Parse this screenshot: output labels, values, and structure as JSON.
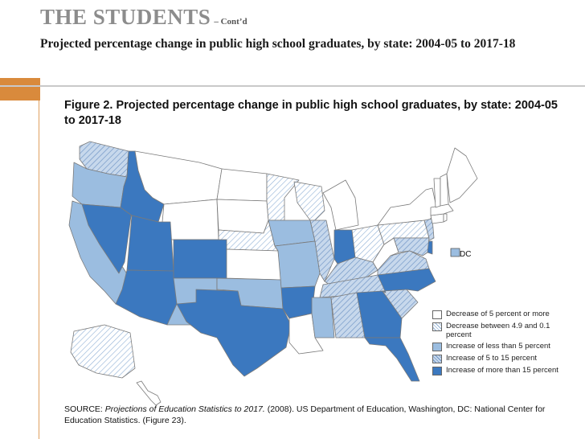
{
  "slide": {
    "title": "THE STUDENTS",
    "title_suffix": "– Cont’d",
    "subtitle": "Projected percentage change in public high school graduates, by state: 2004-05 to 2017-18"
  },
  "figure": {
    "title": "Figure 2. Projected percentage change in public high school graduates, by state: 2004-05 to 2017-18",
    "dc_label": "DC",
    "source_prefix": "SOURCE: ",
    "source_italic": "Projections of Education Statistics to 2017.",
    "source_rest": " (2008). US Department of Education, Washington, DC: National Center for Education Statistics. (Figure 23)."
  },
  "colors": {
    "decrease_5_or_more": "#ffffff",
    "decrease_4_9_to_0_1": "#dce7f3",
    "increase_less_5": "#9bbde0",
    "increase_5_to_15": "#b8cde6",
    "increase_more_15": "#3b78bf",
    "accent_orange": "#d98a3c"
  },
  "legend": [
    {
      "key": "decrease_5_or_more",
      "label": "Decrease of 5 percent or more",
      "pattern": "none"
    },
    {
      "key": "decrease_4_9_to_0_1",
      "label": "Decrease between 4.9 and 0.1 percent",
      "pattern": "hatch"
    },
    {
      "key": "increase_less_5",
      "label": "Increase of less than 5 percent",
      "pattern": "none"
    },
    {
      "key": "increase_5_to_15",
      "label": "Increase of 5 to 15 percent",
      "pattern": "hatch"
    },
    {
      "key": "increase_more_15",
      "label": "Increase of more than 15 percent",
      "pattern": "none"
    }
  ],
  "states": {
    "WA": "increase_5_to_15",
    "OR": "increase_less_5",
    "CA": "increase_less_5",
    "NV": "increase_more_15",
    "ID": "increase_more_15",
    "MT": "decrease_5_or_more",
    "WY": "decrease_5_or_more",
    "UT": "increase_more_15",
    "AZ": "increase_more_15",
    "CO": "increase_more_15",
    "NM": "increase_less_5",
    "TX": "increase_more_15",
    "ND": "decrease_5_or_more",
    "SD": "decrease_5_or_more",
    "NE": "decrease_4_9_to_0_1",
    "KS": "decrease_5_or_more",
    "OK": "increase_less_5",
    "MN": "decrease_4_9_to_0_1",
    "IA": "increase_less_5",
    "MO": "increase_less_5",
    "AR": "increase_more_15",
    "LA": "decrease_5_or_more",
    "WI": "decrease_4_9_to_0_1",
    "IL": "increase_5_to_15",
    "MI": "decrease_5_or_more",
    "IN": "increase_more_15",
    "OH": "decrease_4_9_to_0_1",
    "KY": "increase_5_to_15",
    "TN": "increase_5_to_15",
    "MS": "increase_less_5",
    "AL": "increase_5_to_15",
    "GA": "increase_more_15",
    "FL": "increase_more_15",
    "SC": "increase_5_to_15",
    "NC": "increase_more_15",
    "VA": "increase_5_to_15",
    "WV": "decrease_5_or_more",
    "PA": "decrease_4_9_to_0_1",
    "NY": "decrease_5_or_more",
    "NJ": "increase_5_to_15",
    "DE": "increase_more_15",
    "MD": "increase_5_to_15",
    "DC": "increase_less_5",
    "CT": "decrease_5_or_more",
    "RI": "decrease_5_or_more",
    "MA": "decrease_5_or_more",
    "VT": "decrease_5_or_more",
    "NH": "decrease_5_or_more",
    "ME": "decrease_5_or_more",
    "AK": "decrease_4_9_to_0_1",
    "HI": "decrease_5_or_more"
  }
}
